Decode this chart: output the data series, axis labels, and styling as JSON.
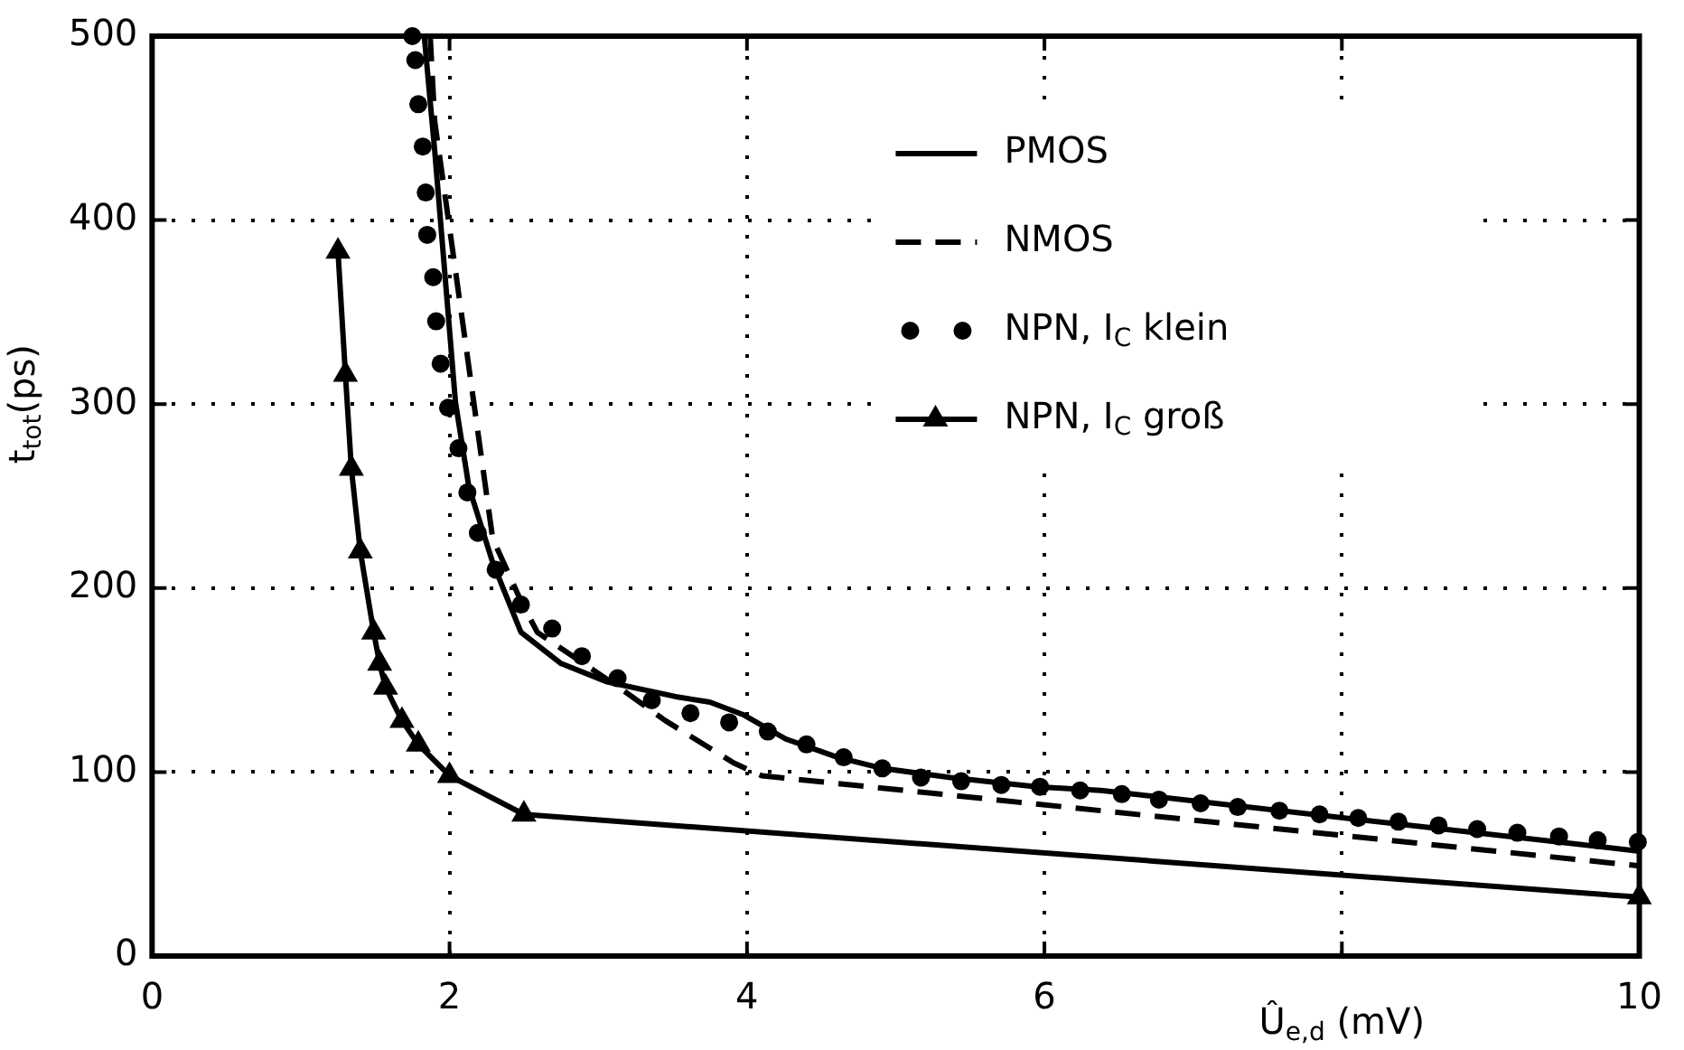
{
  "chart_data": {
    "type": "line",
    "xlabel": "Û$_{e,d}$ (mV)",
    "ylabel": "t$_{tot}$(ps)",
    "xlim": [
      0,
      10
    ],
    "xticks": [
      0,
      2,
      4,
      6,
      {
        "value": 8,
        "label": null
      },
      10
    ],
    "ylim": [
      0,
      500
    ],
    "yticks": [
      0,
      100,
      200,
      300,
      400,
      500
    ],
    "grid": true,
    "legend": "top right",
    "series": [
      {
        "name": "PMOS",
        "color": "#000000",
        "line_style": "solid",
        "marker": "none",
        "x": [
          1.83,
          1.9,
          2.04,
          2.13,
          2.29,
          2.48,
          2.75,
          3.06,
          3.52,
          3.75,
          3.98,
          4.26,
          4.61,
          4.91,
          5.37,
          5.95,
          6.38,
          10
        ],
        "values": [
          500,
          438,
          301,
          255,
          214,
          176,
          159,
          149,
          141,
          138,
          131,
          118,
          108,
          102,
          97,
          92,
          90,
          57
        ]
      },
      {
        "name": "NMOS",
        "color": "#000000",
        "line_style": "dashed",
        "marker": "none",
        "x": [
          1.87,
          1.9,
          2.29,
          2.48,
          2.59,
          3.14,
          3.45,
          3.91,
          4.1,
          6.38,
          10
        ],
        "values": [
          500,
          454,
          227,
          193,
          176,
          146,
          128,
          105,
          98,
          79,
          49
        ]
      },
      {
        "name": "NPN, I$_{C}$ klein",
        "type": "scatter",
        "color": "#000000",
        "marker": "circle",
        "x": [
          1.75,
          1.77,
          1.79,
          1.82,
          1.84,
          1.85,
          1.89,
          1.91,
          1.94,
          1.99,
          2.06,
          2.12,
          2.19,
          2.31,
          2.48,
          2.69,
          2.89,
          3.13,
          3.36,
          3.62,
          3.88,
          4.14,
          4.4,
          4.65,
          4.91,
          5.17,
          5.44,
          5.71,
          5.97,
          6.24,
          6.52,
          6.77,
          7.05,
          7.3,
          7.58,
          7.85,
          8.11,
          8.38,
          8.65,
          8.91,
          9.18,
          9.46,
          9.72,
          9.99
        ],
        "values": [
          500,
          487,
          463,
          440,
          415,
          392,
          369,
          345,
          322,
          298,
          276,
          252,
          230,
          210,
          191,
          178,
          163,
          151,
          139,
          132,
          127,
          122,
          115,
          108,
          102,
          97,
          95,
          93,
          92,
          90,
          88,
          85,
          83,
          81,
          79,
          77,
          75,
          73,
          71,
          69,
          67,
          65,
          63,
          62
        ]
      },
      {
        "name": "NPN, I$_{C}$ groß",
        "color": "#000000",
        "line_style": "solid",
        "marker": "triangle",
        "x": [
          1.25,
          1.3,
          1.34,
          1.4,
          1.49,
          1.53,
          1.57,
          1.68,
          1.79,
          2,
          2.5,
          10
        ],
        "values": [
          383,
          316,
          265,
          220,
          176,
          159,
          146,
          128,
          115,
          98,
          77,
          32
        ]
      }
    ]
  }
}
